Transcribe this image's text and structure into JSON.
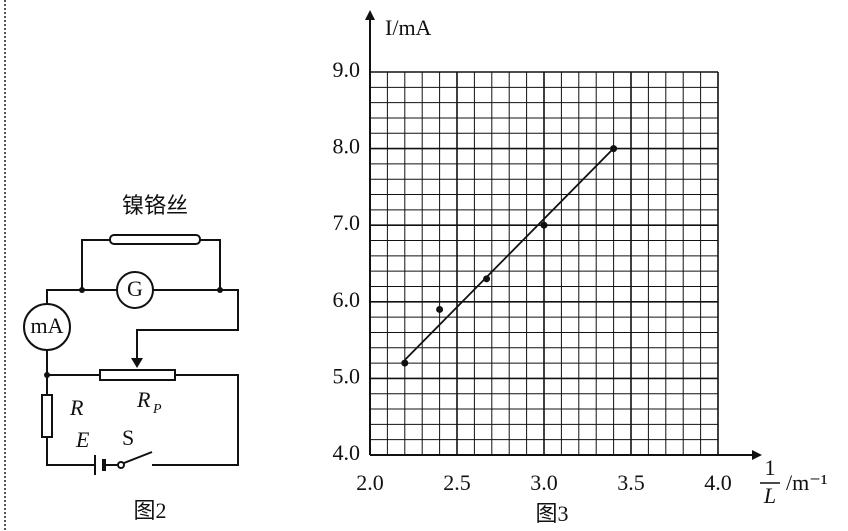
{
  "figure2": {
    "wire_label": "镍铬丝",
    "galvanometer": "G",
    "ammeter": "mA",
    "resistor": "R",
    "rheostat": {
      "main": "R",
      "sub": "P"
    },
    "battery": "E",
    "switch": "S",
    "caption": "图2"
  },
  "chart_data": {
    "type": "scatter",
    "caption": "图3",
    "y_label": "I/mA",
    "x_label": {
      "numerator": "1",
      "denominator": "L",
      "unit": "/m⁻¹"
    },
    "series": [
      {
        "color": "#111111",
        "x": [
          2.2,
          2.4,
          2.67,
          3.0,
          3.4
        ],
        "values": [
          5.2,
          5.9,
          6.3,
          7.0,
          8.0
        ]
      },
      {
        "color": "#111111",
        "line": true,
        "x": [
          2.2,
          3.39
        ],
        "values": [
          5.24,
          7.98
        ]
      }
    ],
    "xlim": [
      2.0,
      4.0
    ],
    "ylim": [
      4.0,
      9.0
    ],
    "xticks": [
      {
        "value": 2,
        "label": "2.0"
      },
      2.5,
      {
        "value": 3,
        "label": "3.0"
      },
      3.5,
      {
        "value": 4,
        "label": "4.0"
      }
    ],
    "yticks": [
      {
        "value": 4,
        "label": "4.0"
      },
      {
        "value": 5,
        "label": "5.0"
      },
      {
        "value": 6,
        "label": "6.0"
      },
      {
        "value": 7,
        "label": "7.0"
      },
      {
        "value": 8,
        "label": "8.0"
      },
      {
        "value": 9,
        "label": "9.0"
      }
    ],
    "grid": true
  }
}
